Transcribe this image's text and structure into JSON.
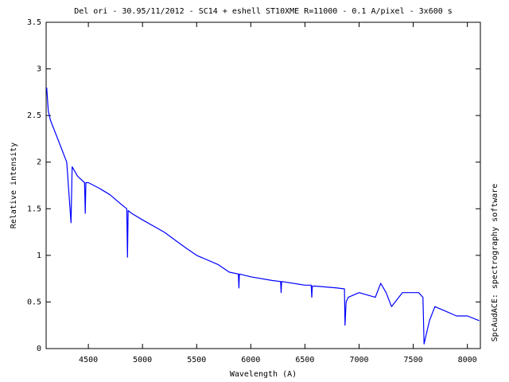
{
  "chart_data": {
    "type": "line",
    "title": "Del ori - 30.95/11/2012 - SC14 + eshell ST10XME R=11000 - 0.1 A/pixel - 3x600 s",
    "x_label": "Wavelength (A)",
    "y_label": "Relative intensity",
    "side_label": "SpcAudACE: spectrography software",
    "color": "#0000ff",
    "x": [
      4115,
      4130,
      4150,
      4200,
      4250,
      4300,
      4340,
      4350,
      4400,
      4465,
      4471,
      4477,
      4500,
      4600,
      4700,
      4800,
      4855,
      4861,
      4867,
      4900,
      5000,
      5200,
      5400,
      5500,
      5700,
      5800,
      5885,
      5890,
      5895,
      6000,
      6200,
      6275,
      6280,
      6285,
      6500,
      6558,
      6563,
      6568,
      6600,
      6800,
      6865,
      6870,
      6880,
      6900,
      7000,
      7150,
      7200,
      7250,
      7300,
      7400,
      7550,
      7590,
      7600,
      7650,
      7700,
      7800,
      7900,
      8000,
      8110
    ],
    "values": [
      2.8,
      2.55,
      2.45,
      2.3,
      2.15,
      2.0,
      1.35,
      1.95,
      1.85,
      1.78,
      1.45,
      1.78,
      1.78,
      1.72,
      1.65,
      1.55,
      1.5,
      0.98,
      1.48,
      1.45,
      1.38,
      1.25,
      1.08,
      1.0,
      0.9,
      0.82,
      0.8,
      0.65,
      0.8,
      0.77,
      0.73,
      0.72,
      0.6,
      0.72,
      0.68,
      0.68,
      0.55,
      0.67,
      0.67,
      0.65,
      0.64,
      0.25,
      0.5,
      0.55,
      0.6,
      0.55,
      0.7,
      0.6,
      0.45,
      0.6,
      0.6,
      0.55,
      0.05,
      0.3,
      0.45,
      0.4,
      0.35,
      0.35,
      0.3
    ],
    "xlim": [
      4110,
      8120
    ],
    "ylim": [
      0,
      3.5
    ],
    "xticks": [
      4500,
      5000,
      5500,
      6000,
      6500,
      7000,
      7500,
      8000
    ],
    "yticks": [
      0,
      0.5,
      1,
      1.5,
      2,
      2.5,
      3,
      3.5
    ]
  }
}
